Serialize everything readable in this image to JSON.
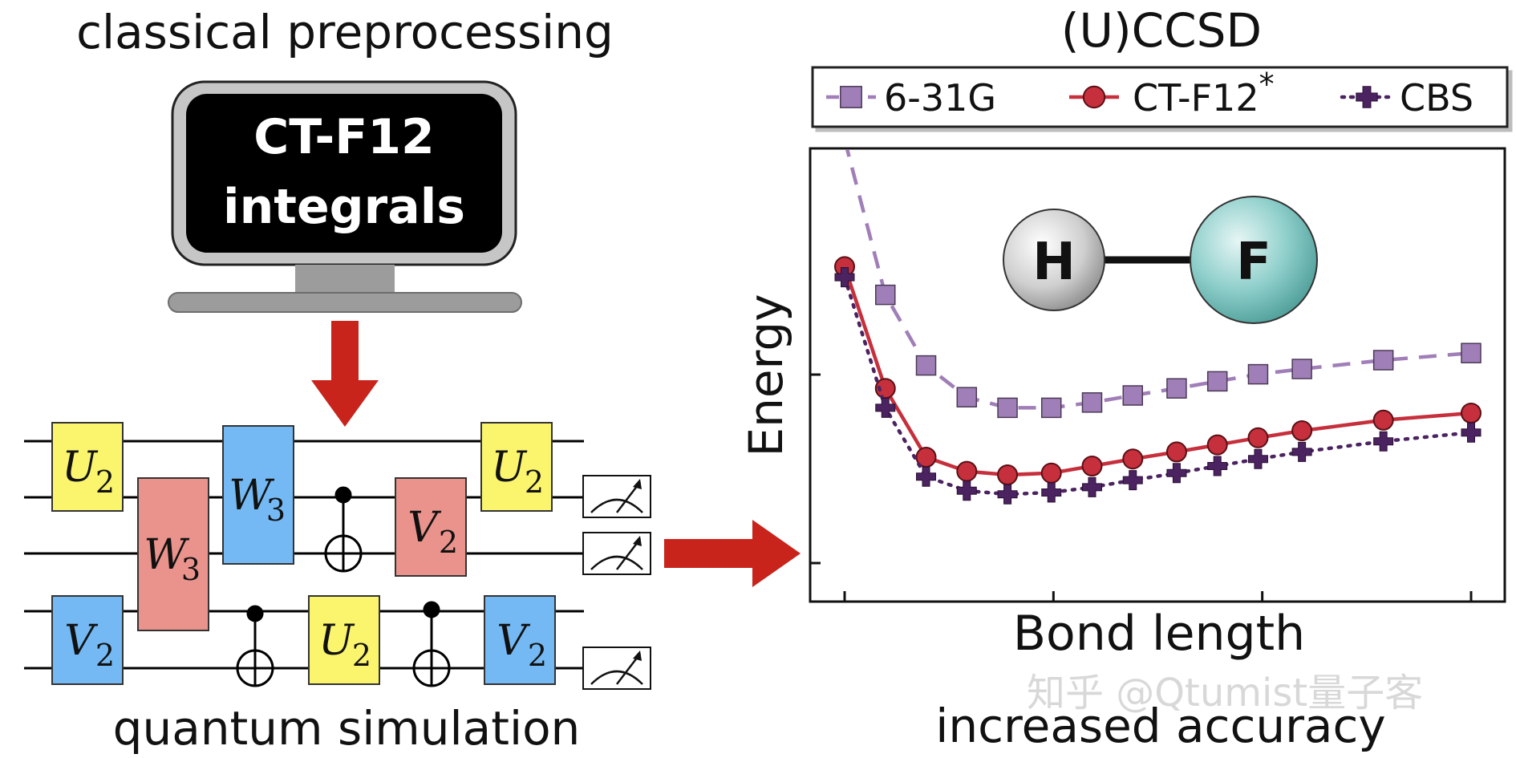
{
  "left": {
    "top_label": "classical preprocessing",
    "monitor_line1": "CT-F12",
    "monitor_line2": "integrals",
    "bottom_label": "quantum simulation"
  },
  "circuit": {
    "gate_U": "U",
    "gate_V": "V",
    "gate_W": "W",
    "sub2": "2",
    "sub3": "3"
  },
  "colors": {
    "gate_yellow": "#fbf56e",
    "gate_blue": "#74b9f3",
    "gate_red": "#e9938c",
    "arrow_red": "#c8241b",
    "series_631g": "#a07fb8",
    "series_ctf12": "#c62f3c",
    "series_cbs": "#4b2360"
  },
  "right": {
    "title": "(U)CCSD",
    "bottom_label": "increased accuracy",
    "molecule_atom1": "H",
    "molecule_atom2": "F"
  },
  "watermark": "知乎 @Qtumist量子客",
  "chart_data": {
    "type": "line",
    "title": "(U)CCSD",
    "xlabel": "Bond length",
    "ylabel": "Energy",
    "xlim": [
      0.0,
      1.0
    ],
    "ylim": [
      0.0,
      1.0
    ],
    "legend_position": "top",
    "series": [
      {
        "name": "6-31G",
        "marker": "square",
        "style": "dashed",
        "x": [
          0.0,
          0.065,
          0.13,
          0.195,
          0.26,
          0.33,
          0.395,
          0.46,
          0.53,
          0.595,
          0.66,
          0.73,
          0.86,
          1.0
        ],
        "y": [
          1.2,
          0.76,
          0.56,
          0.47,
          0.44,
          0.44,
          0.455,
          0.475,
          0.495,
          0.515,
          0.535,
          0.55,
          0.575,
          0.595
        ]
      },
      {
        "name": "CT-F12*",
        "marker": "circle",
        "style": "solid",
        "x": [
          0.0,
          0.065,
          0.13,
          0.195,
          0.26,
          0.33,
          0.395,
          0.46,
          0.53,
          0.595,
          0.66,
          0.73,
          0.86,
          1.0
        ],
        "y": [
          0.84,
          0.495,
          0.3,
          0.26,
          0.25,
          0.255,
          0.275,
          0.295,
          0.315,
          0.335,
          0.355,
          0.375,
          0.405,
          0.425
        ]
      },
      {
        "name": "CBS",
        "marker": "plus",
        "style": "dotted",
        "x": [
          0.0,
          0.065,
          0.13,
          0.195,
          0.26,
          0.33,
          0.395,
          0.46,
          0.53,
          0.595,
          0.66,
          0.73,
          0.86,
          1.0
        ],
        "y": [
          0.81,
          0.44,
          0.245,
          0.205,
          0.195,
          0.2,
          0.215,
          0.235,
          0.255,
          0.275,
          0.295,
          0.315,
          0.345,
          0.37
        ]
      }
    ]
  }
}
